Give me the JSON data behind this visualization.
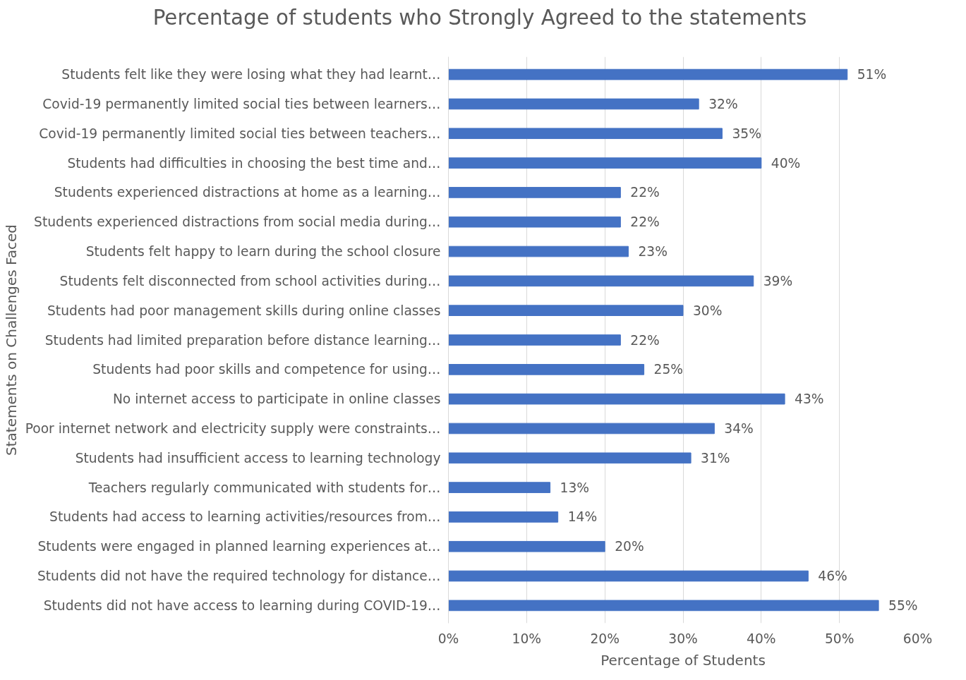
{
  "chart_data": {
    "type": "bar",
    "orientation": "horizontal",
    "title": "Percentage of students who Strongly Agreed to the statements",
    "xlabel": "Percentage of Students",
    "ylabel": "Statements on Challenges Faced",
    "categories": [
      "Students felt like they were losing what they had learnt…",
      "Covid-19 permanently limited social ties between learners…",
      "Covid-19 permanently limited social ties between teachers…",
      "Students had difficulties in choosing the best time and…",
      "Students experienced distractions at home as a learning…",
      "Students experienced distractions from social media during…",
      "Students felt happy to learn during the school closure",
      "Students felt disconnected from school activities during…",
      "Students had poor management skills during online classes",
      "Students had limited preparation before distance learning…",
      "Students had poor skills and competence for using…",
      "No internet access to participate in online classes",
      "Poor internet network and electricity supply were constraints…",
      "Students had insufficient access to learning technology",
      "Teachers regularly communicated with students for…",
      "Students had access to learning activities/resources from…",
      "Students were engaged in planned learning experiences at…",
      "Students did not have the required technology for distance…",
      "Students did not have access to learning during COVID-19…"
    ],
    "values": [
      51,
      32,
      35,
      40,
      22,
      22,
      23,
      39,
      30,
      22,
      25,
      43,
      34,
      31,
      13,
      14,
      20,
      46,
      55
    ],
    "value_labels": [
      "51%",
      "32%",
      "35%",
      "40%",
      "22%",
      "22%",
      "23%",
      "39%",
      "30%",
      "22%",
      "25%",
      "43%",
      "34%",
      "31%",
      "13%",
      "14%",
      "20%",
      "46%",
      "55%"
    ],
    "color": "#4472c4",
    "xlim": [
      0,
      60
    ],
    "xticks": [
      {
        "value": 0,
        "label": "0%"
      },
      {
        "value": 10,
        "label": "10%"
      },
      {
        "value": 20,
        "label": "20%"
      },
      {
        "value": 30,
        "label": "30%"
      },
      {
        "value": 40,
        "label": "40%"
      },
      {
        "value": 50,
        "label": "50%"
      },
      {
        "value": 60,
        "label": "60%"
      }
    ],
    "grid": "x"
  }
}
